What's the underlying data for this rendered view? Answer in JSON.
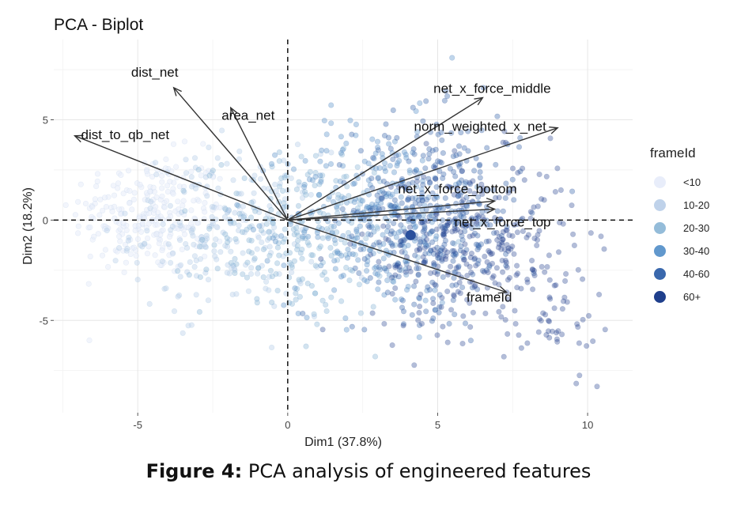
{
  "chart_data": {
    "type": "scatter",
    "title": "PCA - Biplot",
    "xlabel": "Dim1 (37.8%)",
    "ylabel": "Dim2 (18.2%)",
    "xlim": [
      -7.8,
      11.5
    ],
    "ylim": [
      -9.6,
      9.0
    ],
    "xticks": [
      -5,
      0,
      5,
      10
    ],
    "yticks": [
      -5,
      0,
      5
    ],
    "grid": true,
    "reference_lines": {
      "x": 0,
      "y": 0,
      "style": "dashed"
    },
    "legend": {
      "title": "frameId",
      "position": "right",
      "entries": [
        {
          "label": "<10",
          "color": "#e8edfa"
        },
        {
          "label": "10-20",
          "color": "#bfd2ea"
        },
        {
          "label": "20-30",
          "color": "#94bcd9"
        },
        {
          "label": "30-40",
          "color": "#6198cd"
        },
        {
          "label": "40-60",
          "color": "#3a68ad"
        },
        {
          "label": "60+",
          "color": "#1f3f8c"
        }
      ]
    },
    "centroid": {
      "x": 4.1,
      "y": -0.75,
      "color": "#2a4f9c"
    },
    "loadings": [
      {
        "name": "dist_net",
        "x": -3.8,
        "y": 6.6
      },
      {
        "name": "area_net",
        "x": -1.9,
        "y": 5.6
      },
      {
        "name": "dist_to_qb_net",
        "x": -7.1,
        "y": 4.2
      },
      {
        "name": "net_x_force_middle",
        "x": 6.5,
        "y": 6.1
      },
      {
        "name": "norm_weighted_x_net",
        "x": 9.0,
        "y": 4.6
      },
      {
        "name": "net_x_force_bottom",
        "x": 6.9,
        "y": 0.95
      },
      {
        "name": "net_x_force_top",
        "x": 6.9,
        "y": 0.55
      },
      {
        "name": "frameId",
        "x": 7.3,
        "y": -3.6
      }
    ]
  },
  "caption": {
    "label": "Figure 4:",
    "text": " PCA analysis of engineered features"
  }
}
